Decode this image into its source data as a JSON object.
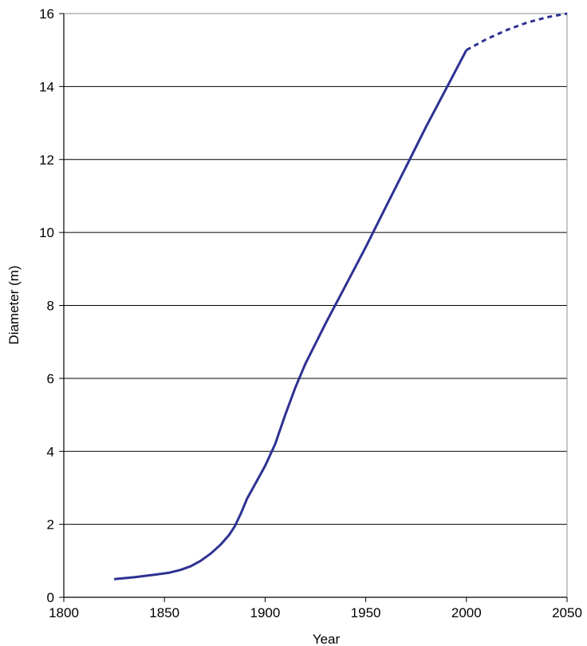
{
  "chart_data": {
    "type": "line",
    "xlabel": "Year",
    "ylabel": "Diameter (m)",
    "xlim": [
      1800,
      2050
    ],
    "ylim": [
      0,
      16
    ],
    "x_ticks": [
      1800,
      1850,
      1900,
      1950,
      2000,
      2050
    ],
    "y_ticks": [
      0,
      2,
      4,
      6,
      8,
      10,
      12,
      14,
      16
    ],
    "grid": "horizontal",
    "legend": "none",
    "line_color": "#2e3192",
    "series": [
      {
        "style": "solid",
        "x": [
          1825,
          1835,
          1845,
          1852,
          1858,
          1863,
          1868,
          1873,
          1878,
          1882,
          1885,
          1888,
          1891,
          1895,
          1900,
          1905,
          1910,
          1915,
          1920,
          1925,
          1930,
          1940,
          1950,
          1960,
          1970,
          1980,
          1990,
          2000
        ],
        "y": [
          0.5,
          0.55,
          0.62,
          0.67,
          0.75,
          0.85,
          1.0,
          1.2,
          1.45,
          1.7,
          1.95,
          2.3,
          2.7,
          3.1,
          3.6,
          4.2,
          5.0,
          5.75,
          6.4,
          6.95,
          7.5,
          8.55,
          9.6,
          10.7,
          11.8,
          12.9,
          13.95,
          15.0
        ]
      },
      {
        "style": "dashed",
        "x": [
          2000,
          2010,
          2020,
          2030,
          2040,
          2050
        ],
        "y": [
          15.0,
          15.3,
          15.55,
          15.75,
          15.9,
          16.0
        ]
      }
    ]
  }
}
